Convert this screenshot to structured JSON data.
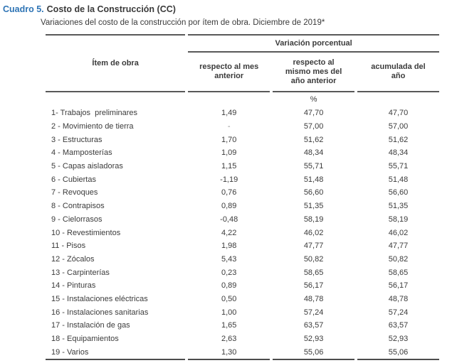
{
  "page": {
    "title_label": "Cuadro 5.",
    "title": "Costo de la Construcción (CC)",
    "subtitle": "Variaciones del costo de la construcción por ítem de obra. Diciembre de 2019*"
  },
  "table": {
    "item_header": "Ítem de obra",
    "group_header": "Variación porcentual",
    "columns": [
      "respecto al mes anterior",
      "respecto al mismo mes del año anterior",
      "acumulada del año"
    ],
    "unit_label": "%",
    "rows": [
      {
        "item": "1- Trabajos  preliminares",
        "monthly": "1,49",
        "yoy": "47,70",
        "ytd": "47,70"
      },
      {
        "item": "2 - Movimiento de tierra",
        "monthly": "-",
        "yoy": "57,00",
        "ytd": "57,00"
      },
      {
        "item": "3 - Estructuras",
        "monthly": "1,70",
        "yoy": "51,62",
        "ytd": "51,62"
      },
      {
        "item": "4 - Mamposterías",
        "monthly": "1,09",
        "yoy": "48,34",
        "ytd": "48,34"
      },
      {
        "item": "5 - Capas aisladoras",
        "monthly": "1,15",
        "yoy": "55,71",
        "ytd": "55,71"
      },
      {
        "item": "6 - Cubiertas",
        "monthly": "-1,19",
        "yoy": "51,48",
        "ytd": "51,48"
      },
      {
        "item": "7 - Revoques",
        "monthly": "0,76",
        "yoy": "56,60",
        "ytd": "56,60"
      },
      {
        "item": "8 - Contrapisos",
        "monthly": "0,89",
        "yoy": "51,35",
        "ytd": "51,35"
      },
      {
        "item": "9 - Cielorrasos",
        "monthly": "-0,48",
        "yoy": "58,19",
        "ytd": "58,19"
      },
      {
        "item": "10 - Revestimientos",
        "monthly": "4,22",
        "yoy": "46,02",
        "ytd": "46,02"
      },
      {
        "item": "11 - Pisos",
        "monthly": "1,98",
        "yoy": "47,77",
        "ytd": "47,77"
      },
      {
        "item": "12 - Zócalos",
        "monthly": "5,43",
        "yoy": "50,82",
        "ytd": "50,82"
      },
      {
        "item": "13 - Carpinterías",
        "monthly": "0,23",
        "yoy": "58,65",
        "ytd": "58,65"
      },
      {
        "item": "14 - Pinturas",
        "monthly": "0,89",
        "yoy": "56,17",
        "ytd": "56,17"
      },
      {
        "item": "15 - Instalaciones eléctricas",
        "monthly": "0,50",
        "yoy": "48,78",
        "ytd": "48,78"
      },
      {
        "item": "16 - Instalaciones sanitarias",
        "monthly": "1,00",
        "yoy": "57,24",
        "ytd": "57,24"
      },
      {
        "item": "17 - Instalación de gas",
        "monthly": "1,65",
        "yoy": "63,57",
        "ytd": "63,57"
      },
      {
        "item": "18 - Equipamientos",
        "monthly": "2,63",
        "yoy": "52,93",
        "ytd": "52,93"
      },
      {
        "item": "19 - Varios",
        "monthly": "1,30",
        "yoy": "55,06",
        "ytd": "55,06"
      }
    ]
  },
  "colors": {
    "accent_blue": "#2e74b5",
    "body_text": "#3b3b3b",
    "rule_gray": "#595959"
  }
}
